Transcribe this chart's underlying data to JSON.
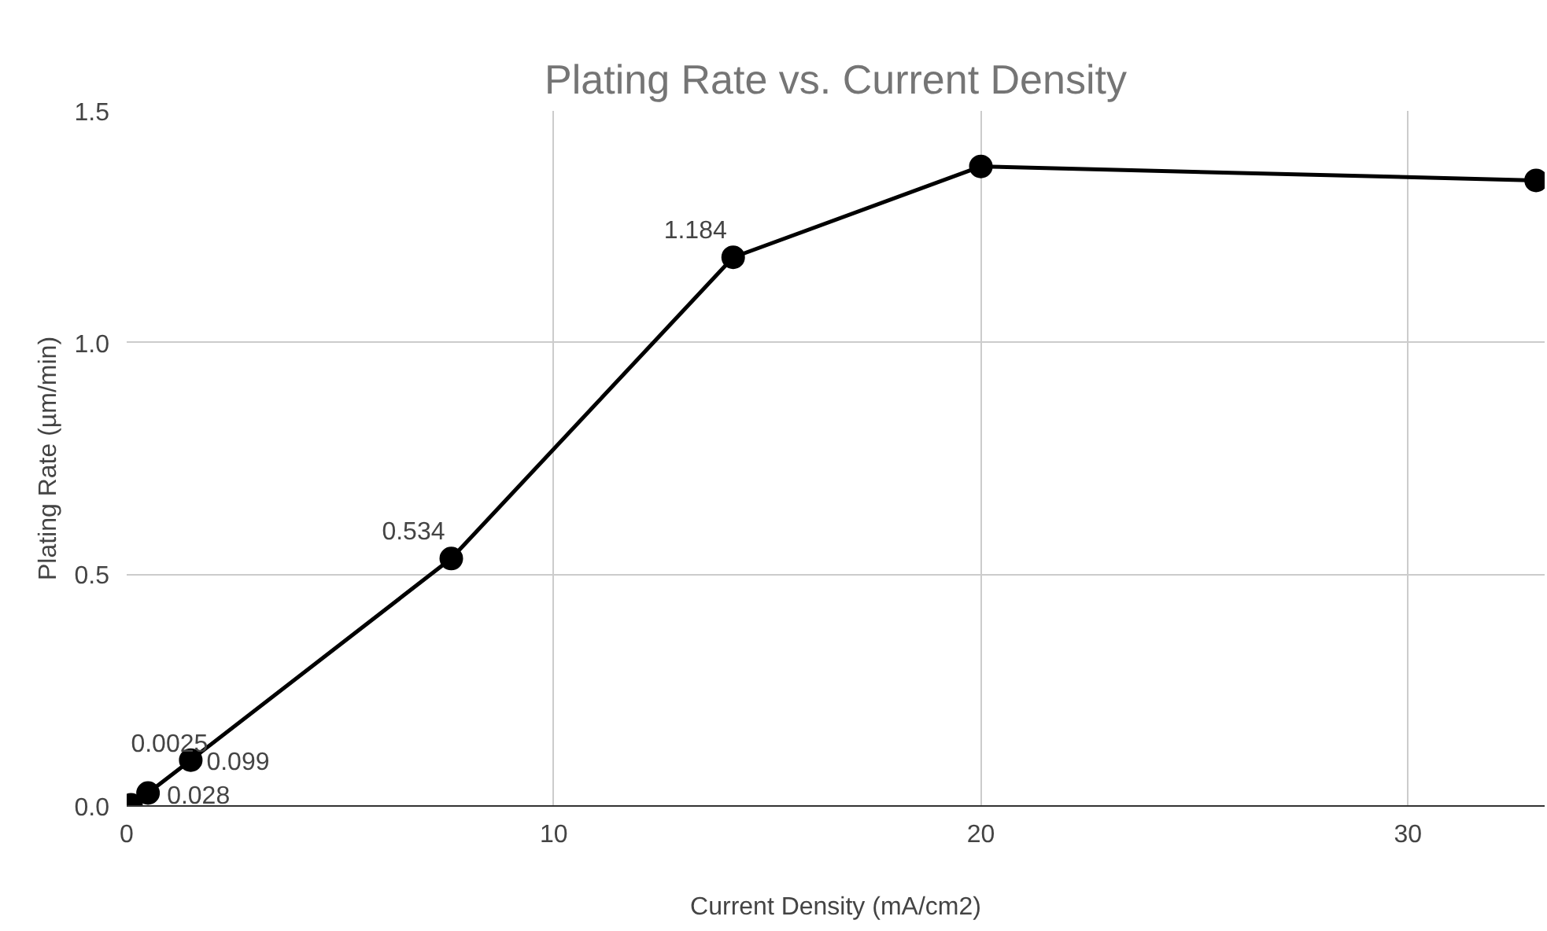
{
  "chart_data": {
    "type": "line",
    "title": "Plating Rate vs. Current Density",
    "xlabel": "Current Density (mA/cm2)",
    "ylabel": "Plating Rate (µm/min)",
    "x": [
      0.1,
      0.5,
      1.5,
      7.6,
      14.2,
      20,
      33
    ],
    "series": [
      {
        "color": "#000000",
        "values": [
          0.0025,
          0.028,
          0.099,
          0.534,
          1.184,
          1.38,
          1.35
        ],
        "value_labels": [
          "0.0025",
          "0.028",
          "0.099",
          "0.534",
          "1.184",
          null,
          null
        ]
      }
    ],
    "xlim": [
      0,
      33.2
    ],
    "xticks": [
      0,
      10,
      20,
      30
    ],
    "ylim": [
      0,
      1.5
    ],
    "yticks": [
      {
        "value": 0,
        "label": "0.0"
      },
      {
        "value": 0.5,
        "label": "0.5"
      },
      {
        "value": 1.0,
        "label": "1.0"
      },
      {
        "value": 1.5,
        "label": "1.5"
      }
    ],
    "grid": true,
    "marker": "circle",
    "line_style": "solid"
  }
}
